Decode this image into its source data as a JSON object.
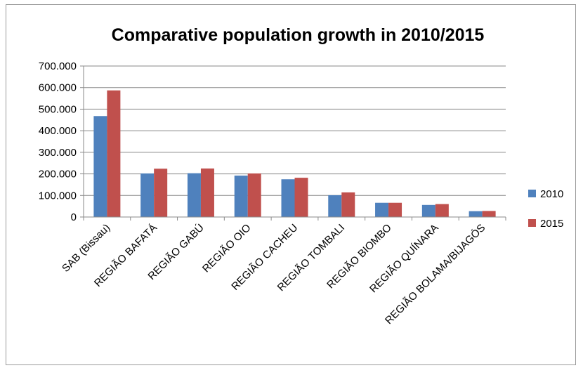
{
  "chart_data": {
    "type": "bar",
    "title": "Comparative population growth in 2010/2015",
    "categories": [
      "SAB (Bissau)",
      "REGIÃO BAFATÁ",
      "REGIÃO GABÚ",
      "REGIÃO OIO",
      "REGIÃO CACHEU",
      "REGIÃO TOMBALI",
      "REGIÃO BIOMBO",
      "REGIÃO QUÍNARA",
      "REGIÃO BOLAMA/BIJAGÓS"
    ],
    "series": [
      {
        "name": "2010",
        "color": "#4f81bd",
        "values": [
          468000,
          202000,
          203000,
          192000,
          175000,
          101000,
          66000,
          56000,
          27000
        ]
      },
      {
        "name": "2015",
        "color": "#c0504d",
        "values": [
          587000,
          224000,
          225000,
          202000,
          182000,
          114000,
          66000,
          60000,
          28000
        ]
      }
    ],
    "yticks": [
      "0",
      "100.000",
      "200.000",
      "300.000",
      "400.000",
      "500.000",
      "600.000",
      "700.000"
    ],
    "ylim": [
      0,
      700000
    ],
    "grid": true,
    "legend": "right"
  }
}
